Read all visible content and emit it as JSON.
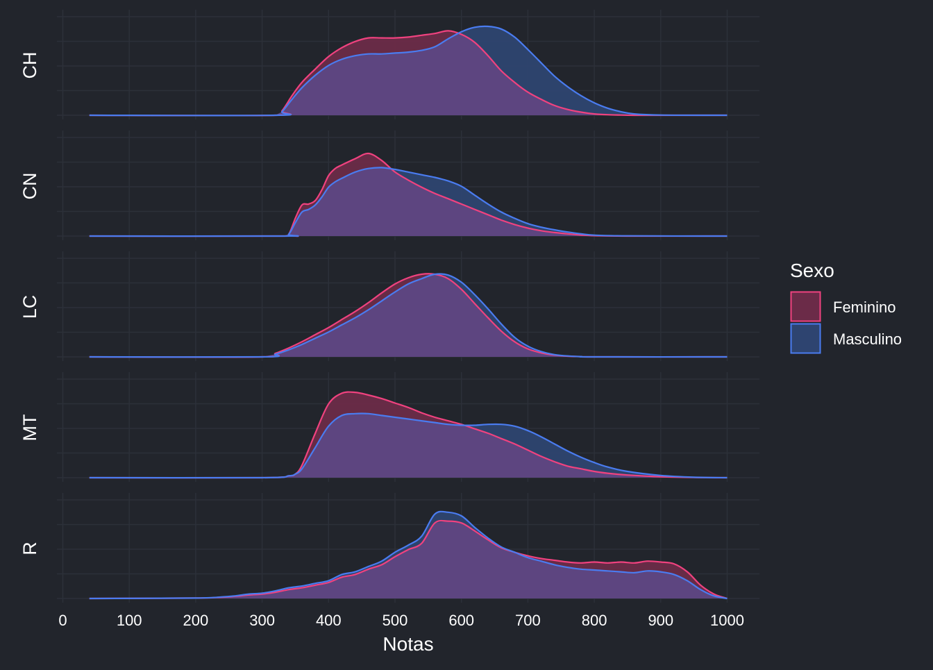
{
  "chart_data": {
    "type": "area",
    "subtype": "faceted density plot",
    "xlabel": "Notas",
    "ylabel": "",
    "xlim": [
      0,
      1000
    ],
    "x_ticks": [
      0,
      100,
      200,
      300,
      400,
      500,
      600,
      700,
      800,
      900,
      1000
    ],
    "grid": true,
    "legend": {
      "title": "Sexo",
      "position": "right",
      "entries": [
        {
          "name": "Feminino",
          "color": "#f0427f",
          "fill": "#6b2b48"
        },
        {
          "name": "Masculino",
          "color": "#4a7cf0",
          "fill": "#2e4470"
        }
      ]
    },
    "overlap_fill": "#5d4580",
    "facets": [
      {
        "label": "CH",
        "ymax": 1.0,
        "series": [
          {
            "name": "Feminino",
            "x": [
              40,
              320,
              330,
              345,
              360,
              380,
              400,
              420,
              440,
              460,
              480,
              500,
              520,
              540,
              560,
              580,
              600,
              620,
              640,
              660,
              680,
              700,
              720,
              740,
              760,
              780,
              800,
              820,
              840,
              860,
              900,
              1000
            ],
            "y": [
              0,
              0,
              0.05,
              0.22,
              0.37,
              0.52,
              0.66,
              0.76,
              0.83,
              0.87,
              0.87,
              0.87,
              0.88,
              0.9,
              0.92,
              0.95,
              0.91,
              0.82,
              0.67,
              0.5,
              0.37,
              0.26,
              0.18,
              0.11,
              0.065,
              0.035,
              0.015,
              0.006,
              0.002,
              0,
              0,
              0
            ]
          },
          {
            "name": "Masculino",
            "x": [
              40,
              320,
              330,
              345,
              360,
              380,
              400,
              420,
              440,
              460,
              480,
              500,
              520,
              540,
              560,
              580,
              600,
              620,
              640,
              660,
              680,
              700,
              720,
              740,
              760,
              780,
              800,
              820,
              840,
              860,
              900,
              1000
            ],
            "y": [
              0,
              0,
              0.04,
              0.18,
              0.31,
              0.45,
              0.56,
              0.63,
              0.67,
              0.69,
              0.69,
              0.7,
              0.71,
              0.73,
              0.77,
              0.86,
              0.94,
              0.99,
              1.0,
              0.97,
              0.88,
              0.74,
              0.59,
              0.44,
              0.32,
              0.22,
              0.14,
              0.08,
              0.04,
              0.015,
              0.002,
              0
            ]
          }
        ]
      },
      {
        "label": "CN",
        "ymax": 1.0,
        "series": [
          {
            "name": "Feminino",
            "x": [
              40,
              330,
              340,
              350,
              360,
              370,
              380,
              390,
              400,
              410,
              420,
              440,
              460,
              480,
              500,
              520,
              540,
              560,
              580,
              600,
              620,
              640,
              660,
              680,
              700,
              720,
              740,
              760,
              780,
              800,
              850,
              1000
            ],
            "y": [
              0,
              0,
              0.02,
              0.2,
              0.35,
              0.36,
              0.4,
              0.52,
              0.68,
              0.76,
              0.8,
              0.87,
              0.93,
              0.85,
              0.72,
              0.63,
              0.55,
              0.48,
              0.42,
              0.36,
              0.3,
              0.24,
              0.18,
              0.13,
              0.09,
              0.06,
              0.04,
              0.025,
              0.012,
              0.005,
              0,
              0
            ]
          },
          {
            "name": "Masculino",
            "x": [
              40,
              330,
              340,
              350,
              360,
              370,
              380,
              390,
              400,
              410,
              420,
              440,
              460,
              480,
              500,
              520,
              540,
              560,
              580,
              600,
              620,
              640,
              660,
              680,
              700,
              720,
              740,
              760,
              780,
              800,
              850,
              1000
            ],
            "y": [
              0,
              0,
              0.02,
              0.15,
              0.27,
              0.3,
              0.35,
              0.44,
              0.55,
              0.61,
              0.65,
              0.72,
              0.76,
              0.77,
              0.75,
              0.72,
              0.69,
              0.66,
              0.62,
              0.56,
              0.46,
              0.36,
              0.27,
              0.2,
              0.14,
              0.1,
              0.07,
              0.045,
              0.025,
              0.01,
              0.002,
              0
            ]
          }
        ]
      },
      {
        "label": "LC",
        "ymax": 1.0,
        "series": [
          {
            "name": "Feminino",
            "x": [
              40,
              300,
              320,
              340,
              360,
              380,
              400,
              420,
              440,
              460,
              480,
              500,
              520,
              540,
              560,
              580,
              600,
              620,
              640,
              660,
              680,
              700,
              720,
              740,
              760,
              780,
              800,
              1000
            ],
            "y": [
              0,
              0,
              0.04,
              0.1,
              0.17,
              0.25,
              0.33,
              0.42,
              0.51,
              0.61,
              0.72,
              0.82,
              0.89,
              0.93,
              0.93,
              0.88,
              0.76,
              0.6,
              0.44,
              0.29,
              0.17,
              0.09,
              0.045,
              0.02,
              0.008,
              0.003,
              0,
              0
            ]
          },
          {
            "name": "Masculino",
            "x": [
              40,
              300,
              320,
              340,
              360,
              380,
              400,
              420,
              440,
              460,
              480,
              500,
              520,
              540,
              560,
              580,
              600,
              620,
              640,
              660,
              680,
              700,
              720,
              740,
              760,
              780,
              800,
              1000
            ],
            "y": [
              0,
              0,
              0.03,
              0.08,
              0.14,
              0.21,
              0.28,
              0.36,
              0.44,
              0.53,
              0.63,
              0.73,
              0.82,
              0.88,
              0.93,
              0.92,
              0.84,
              0.7,
              0.54,
              0.37,
              0.22,
              0.12,
              0.06,
              0.025,
              0.01,
              0.003,
              0,
              0
            ]
          }
        ]
      },
      {
        "label": "MT",
        "ymax": 1.0,
        "series": [
          {
            "name": "Feminino",
            "x": [
              40,
              300,
              340,
              350,
              360,
              380,
              400,
              420,
              440,
              460,
              480,
              500,
              520,
              540,
              560,
              580,
              600,
              620,
              640,
              660,
              680,
              700,
              720,
              740,
              760,
              780,
              800,
              820,
              850,
              900,
              950,
              1000
            ],
            "y": [
              0,
              0,
              0.02,
              0.04,
              0.14,
              0.5,
              0.83,
              0.95,
              0.96,
              0.93,
              0.89,
              0.84,
              0.79,
              0.73,
              0.68,
              0.64,
              0.6,
              0.55,
              0.5,
              0.44,
              0.38,
              0.31,
              0.24,
              0.18,
              0.13,
              0.1,
              0.07,
              0.05,
              0.03,
              0.01,
              0.002,
              0
            ]
          },
          {
            "name": "Masculino",
            "x": [
              40,
              300,
              340,
              350,
              360,
              380,
              400,
              420,
              440,
              460,
              480,
              500,
              520,
              540,
              560,
              580,
              600,
              620,
              640,
              660,
              680,
              700,
              720,
              740,
              760,
              780,
              800,
              820,
              850,
              900,
              950,
              1000
            ],
            "y": [
              0,
              0,
              0.02,
              0.04,
              0.1,
              0.34,
              0.58,
              0.7,
              0.72,
              0.72,
              0.7,
              0.68,
              0.66,
              0.64,
              0.62,
              0.6,
              0.59,
              0.59,
              0.6,
              0.6,
              0.58,
              0.53,
              0.46,
              0.38,
              0.3,
              0.23,
              0.17,
              0.12,
              0.07,
              0.025,
              0.005,
              0
            ]
          }
        ]
      },
      {
        "label": "R",
        "ymax": 1.0,
        "series": [
          {
            "name": "Feminino",
            "x": [
              40,
              200,
              240,
              260,
              280,
              300,
              320,
              340,
              360,
              380,
              400,
              420,
              440,
              460,
              480,
              500,
              520,
              540,
              560,
              580,
              600,
              620,
              640,
              660,
              680,
              700,
              720,
              740,
              760,
              780,
              800,
              820,
              840,
              860,
              880,
              900,
              920,
              940,
              960,
              980,
              1000
            ],
            "y": [
              0,
              0.005,
              0.015,
              0.025,
              0.04,
              0.05,
              0.07,
              0.1,
              0.12,
              0.15,
              0.18,
              0.24,
              0.27,
              0.33,
              0.38,
              0.47,
              0.55,
              0.62,
              0.85,
              0.87,
              0.85,
              0.76,
              0.66,
              0.57,
              0.52,
              0.48,
              0.45,
              0.43,
              0.41,
              0.4,
              0.41,
              0.4,
              0.41,
              0.4,
              0.42,
              0.41,
              0.39,
              0.3,
              0.15,
              0.05,
              0
            ]
          },
          {
            "name": "Masculino",
            "x": [
              40,
              200,
              240,
              260,
              280,
              300,
              320,
              340,
              360,
              380,
              400,
              420,
              440,
              460,
              480,
              500,
              520,
              540,
              560,
              580,
              600,
              620,
              640,
              660,
              680,
              700,
              720,
              740,
              760,
              780,
              800,
              820,
              840,
              860,
              880,
              900,
              920,
              940,
              960,
              980,
              1000
            ],
            "y": [
              0,
              0.005,
              0.018,
              0.03,
              0.05,
              0.06,
              0.085,
              0.12,
              0.14,
              0.17,
              0.2,
              0.27,
              0.3,
              0.36,
              0.42,
              0.52,
              0.6,
              0.7,
              0.95,
              0.97,
              0.93,
              0.8,
              0.68,
              0.58,
              0.52,
              0.46,
              0.42,
              0.38,
              0.35,
              0.33,
              0.32,
              0.31,
              0.3,
              0.29,
              0.31,
              0.3,
              0.27,
              0.2,
              0.1,
              0.03,
              0
            ]
          }
        ]
      }
    ]
  }
}
